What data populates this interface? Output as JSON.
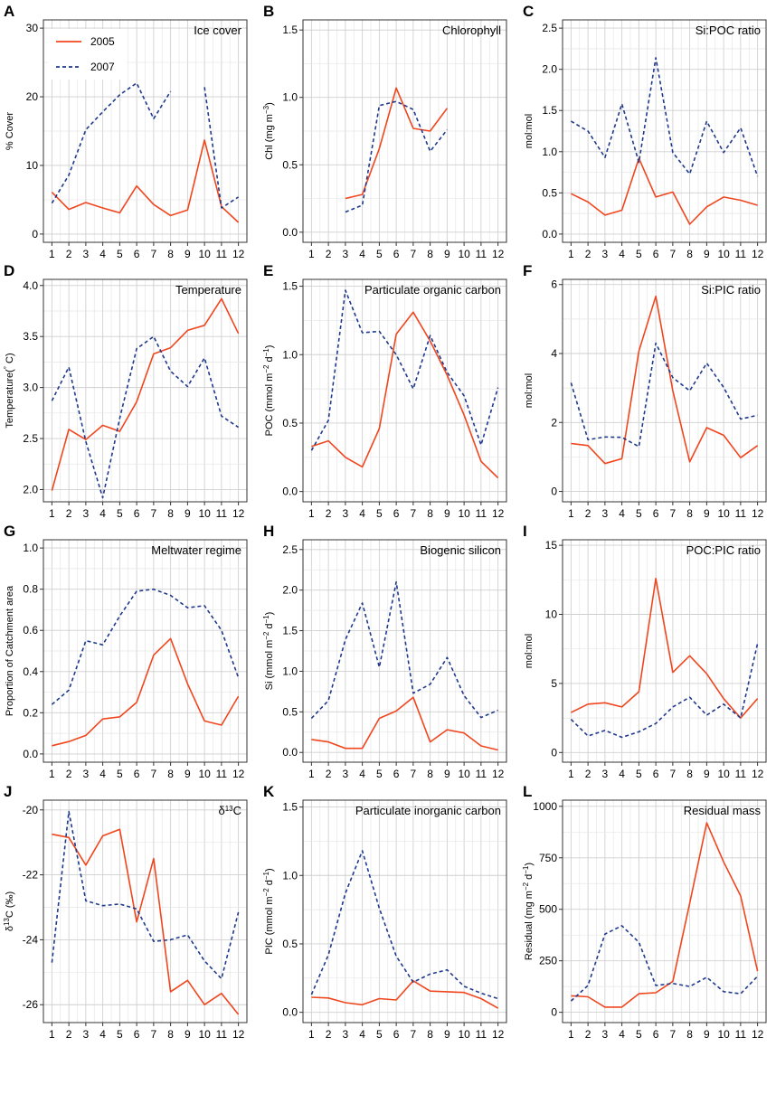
{
  "colors": {
    "s2005": "#f0461e",
    "s2007": "#1f3a8c",
    "grid": "#cfcfcf",
    "frame": "#333333"
  },
  "legend": {
    "entries": [
      "2005",
      "2007"
    ]
  },
  "chart_data": [
    {
      "id": "A",
      "title": "Ice cover",
      "type": "line",
      "ylabel": "% Cover",
      "ylabel_parts": [],
      "ylim": [
        -1.2,
        31.2
      ],
      "yticks": [
        0,
        10,
        20,
        30
      ],
      "ytick_labels": [
        "0",
        "10",
        "20",
        "30"
      ],
      "categories": [
        "1",
        "2",
        "3",
        "4",
        "5",
        "6",
        "7",
        "8",
        "9",
        "10",
        "11",
        "12"
      ],
      "series": [
        {
          "name": "2005",
          "values": [
            6.1,
            3.6,
            4.6,
            3.8,
            3.1,
            7.0,
            4.3,
            2.7,
            3.5,
            13.7,
            4.0,
            1.7
          ]
        },
        {
          "name": "2007",
          "values": [
            4.5,
            8.6,
            15.2,
            17.8,
            20.3,
            22.0,
            16.8,
            20.8,
            null,
            21.4,
            3.8,
            5.4
          ]
        }
      ]
    },
    {
      "id": "B",
      "title": "Chlorophyll",
      "type": "line",
      "ylabel": "",
      "ylabel_parts": [
        [
          "Chl (mg m",
          ""
        ],
        [
          "−3",
          "sup"
        ],
        [
          ")",
          ""
        ]
      ],
      "ylim": [
        -0.075,
        1.575
      ],
      "yticks": [
        0,
        0.5,
        1.0,
        1.5
      ],
      "ytick_labels": [
        "0.0",
        "0.5",
        "1.0",
        "1.5"
      ],
      "categories": [
        "1",
        "2",
        "3",
        "4",
        "5",
        "6",
        "7",
        "8",
        "9",
        "10",
        "11",
        "12"
      ],
      "series": [
        {
          "name": "2005",
          "values": [
            null,
            null,
            0.25,
            0.28,
            0.62,
            1.07,
            0.77,
            0.75,
            0.92,
            null,
            null,
            null
          ]
        },
        {
          "name": "2007",
          "values": [
            null,
            null,
            0.15,
            0.2,
            0.94,
            0.97,
            0.91,
            0.6,
            0.76,
            null,
            null,
            null
          ]
        }
      ]
    },
    {
      "id": "C",
      "title": "Si:POC ratio",
      "type": "line",
      "ylabel": "mol:mol",
      "ylabel_parts": [],
      "ylim": [
        -0.1,
        2.6
      ],
      "yticks": [
        0,
        0.5,
        1.0,
        1.5,
        2.0,
        2.5
      ],
      "ytick_labels": [
        "0.0",
        "0.5",
        "1.0",
        "1.5",
        "2.0",
        "2.5"
      ],
      "categories": [
        "1",
        "2",
        "3",
        "4",
        "5",
        "6",
        "7",
        "8",
        "9",
        "10",
        "11",
        "12"
      ],
      "series": [
        {
          "name": "2005",
          "values": [
            0.49,
            0.39,
            0.23,
            0.29,
            0.92,
            0.45,
            0.51,
            0.12,
            0.33,
            0.45,
            0.41,
            0.35
          ]
        },
        {
          "name": "2007",
          "values": [
            1.37,
            1.25,
            0.93,
            1.58,
            0.87,
            2.14,
            0.99,
            0.73,
            1.37,
            0.99,
            1.29,
            0.7
          ]
        }
      ]
    },
    {
      "id": "D",
      "title": "Temperature",
      "type": "line",
      "ylabel": "",
      "ylabel_parts": [
        [
          "Temperature(",
          ""
        ],
        [
          "°",
          "sup"
        ],
        [
          " C)",
          ""
        ]
      ],
      "ylim": [
        1.88,
        4.06
      ],
      "yticks": [
        2.0,
        2.5,
        3.0,
        3.5,
        4.0
      ],
      "ytick_labels": [
        "2.0",
        "2.5",
        "3.0",
        "3.5",
        "4.0"
      ],
      "categories": [
        "1",
        "2",
        "3",
        "4",
        "5",
        "6",
        "7",
        "8",
        "9",
        "10",
        "11",
        "12"
      ],
      "series": [
        {
          "name": "2005",
          "values": [
            1.99,
            2.59,
            2.49,
            2.63,
            2.57,
            2.86,
            3.33,
            3.39,
            3.56,
            3.61,
            3.87,
            3.53
          ]
        },
        {
          "name": "2007",
          "values": [
            2.87,
            3.2,
            2.47,
            1.92,
            2.7,
            3.38,
            3.5,
            3.16,
            3.01,
            3.29,
            2.72,
            2.61
          ]
        }
      ]
    },
    {
      "id": "E",
      "title": "Particulate organic carbon",
      "type": "line",
      "ylabel": "",
      "ylabel_parts": [
        [
          "POC (mmol m",
          ""
        ],
        [
          "−2",
          "sup"
        ],
        [
          " d",
          ""
        ],
        [
          "−1",
          "sup"
        ],
        [
          ")",
          ""
        ]
      ],
      "ylim": [
        -0.075,
        1.55
      ],
      "yticks": [
        0,
        0.5,
        1.0,
        1.5
      ],
      "ytick_labels": [
        "0.0",
        "0.5",
        "1.0",
        "1.5"
      ],
      "categories": [
        "1",
        "2",
        "3",
        "4",
        "5",
        "6",
        "7",
        "8",
        "9",
        "10",
        "11",
        "12"
      ],
      "series": [
        {
          "name": "2005",
          "values": [
            0.33,
            0.37,
            0.25,
            0.18,
            0.46,
            1.15,
            1.31,
            1.1,
            0.85,
            0.56,
            0.22,
            0.1
          ]
        },
        {
          "name": "2007",
          "values": [
            0.3,
            0.52,
            1.47,
            1.16,
            1.17,
            1.0,
            0.75,
            1.14,
            0.87,
            0.7,
            0.34,
            0.76
          ]
        }
      ]
    },
    {
      "id": "F",
      "title": "Si:PIC ratio",
      "type": "line",
      "ylabel": "mol:mol",
      "ylabel_parts": [],
      "ylim": [
        -0.3,
        6.15
      ],
      "yticks": [
        0,
        2,
        4,
        6
      ],
      "ytick_labels": [
        "0",
        "2",
        "4",
        "6"
      ],
      "categories": [
        "1",
        "2",
        "3",
        "4",
        "5",
        "6",
        "7",
        "8",
        "9",
        "10",
        "11",
        "12"
      ],
      "series": [
        {
          "name": "2005",
          "values": [
            1.39,
            1.33,
            0.81,
            0.95,
            4.07,
            5.66,
            2.92,
            0.86,
            1.85,
            1.63,
            0.98,
            1.33
          ]
        },
        {
          "name": "2007",
          "values": [
            3.15,
            1.5,
            1.58,
            1.57,
            1.3,
            4.3,
            3.3,
            2.92,
            3.72,
            3.02,
            2.1,
            2.21
          ]
        }
      ]
    },
    {
      "id": "G",
      "title": "Meltwater regime",
      "type": "line",
      "ylabel": "Proportion of Catchment area",
      "ylabel_parts": [],
      "ylim": [
        -0.04,
        1.04
      ],
      "yticks": [
        0,
        0.2,
        0.4,
        0.6,
        0.8,
        1.0
      ],
      "ytick_labels": [
        "0.0",
        "0.2",
        "0.4",
        "0.6",
        "0.8",
        "1.0"
      ],
      "categories": [
        "1",
        "2",
        "3",
        "4",
        "5",
        "6",
        "7",
        "8",
        "9",
        "10",
        "11",
        "12"
      ],
      "series": [
        {
          "name": "2005",
          "values": [
            0.04,
            0.06,
            0.09,
            0.17,
            0.18,
            0.25,
            0.48,
            0.56,
            0.34,
            0.16,
            0.14,
            0.28
          ]
        },
        {
          "name": "2007",
          "values": [
            0.24,
            0.31,
            0.55,
            0.53,
            0.67,
            0.79,
            0.8,
            0.77,
            0.71,
            0.72,
            0.6,
            0.37
          ]
        }
      ]
    },
    {
      "id": "H",
      "title": "Biogenic silicon",
      "type": "line",
      "ylabel": "",
      "ylabel_parts": [
        [
          "Si (mmol m",
          ""
        ],
        [
          "−2",
          "sup"
        ],
        [
          " d",
          ""
        ],
        [
          "−1",
          "sup"
        ],
        [
          ")",
          ""
        ]
      ],
      "ylim": [
        -0.12,
        2.62
      ],
      "yticks": [
        0,
        0.5,
        1.0,
        1.5,
        2.0,
        2.5
      ],
      "ytick_labels": [
        "0.0",
        "0.5",
        "1.0",
        "1.5",
        "2.0",
        "2.5"
      ],
      "categories": [
        "1",
        "2",
        "3",
        "4",
        "5",
        "6",
        "7",
        "8",
        "9",
        "10",
        "11",
        "12"
      ],
      "series": [
        {
          "name": "2005",
          "values": [
            0.16,
            0.13,
            0.05,
            0.05,
            0.42,
            0.51,
            0.68,
            0.13,
            0.28,
            0.24,
            0.08,
            0.03
          ]
        },
        {
          "name": "2007",
          "values": [
            0.42,
            0.64,
            1.39,
            1.84,
            1.05,
            2.1,
            0.73,
            0.84,
            1.17,
            0.7,
            0.43,
            0.52
          ]
        }
      ]
    },
    {
      "id": "I",
      "title": "POC:PIC ratio",
      "type": "line",
      "ylabel": "mol:mol",
      "ylabel_parts": [],
      "ylim": [
        -0.7,
        15.4
      ],
      "yticks": [
        0,
        5,
        10,
        15
      ],
      "ytick_labels": [
        "0",
        "5",
        "10",
        "15"
      ],
      "categories": [
        "1",
        "2",
        "3",
        "4",
        "5",
        "6",
        "7",
        "8",
        "9",
        "10",
        "11",
        "12"
      ],
      "series": [
        {
          "name": "2005",
          "values": [
            2.9,
            3.5,
            3.6,
            3.3,
            4.4,
            12.6,
            5.8,
            7.0,
            5.7,
            3.9,
            2.5,
            3.9
          ]
        },
        {
          "name": "2007",
          "values": [
            2.4,
            1.2,
            1.6,
            1.1,
            1.5,
            2.1,
            3.3,
            4.0,
            2.7,
            3.5,
            2.5,
            7.9
          ]
        }
      ]
    },
    {
      "id": "J",
      "title": "δ13C",
      "title_parts": [
        [
          "δ",
          ""
        ],
        [
          "13",
          "sup"
        ],
        [
          "C",
          ""
        ]
      ],
      "type": "line",
      "ylabel": "",
      "ylabel_parts": [
        [
          "δ",
          ""
        ],
        [
          "13",
          "sup"
        ],
        [
          "C (‰)",
          ""
        ]
      ],
      "ylim": [
        -26.55,
        -19.7
      ],
      "yticks": [
        -26,
        -24,
        -22,
        -20
      ],
      "ytick_labels": [
        "-26",
        "-24",
        "-22",
        "-20"
      ],
      "categories": [
        "1",
        "2",
        "3",
        "4",
        "5",
        "6",
        "7",
        "8",
        "9",
        "10",
        "11",
        "12"
      ],
      "series": [
        {
          "name": "2005",
          "values": [
            -20.75,
            -20.85,
            -21.7,
            -20.8,
            -20.6,
            -23.45,
            -21.5,
            -25.6,
            -25.25,
            -26.0,
            -25.65,
            -26.3
          ]
        },
        {
          "name": "2007",
          "values": [
            -24.7,
            -20.05,
            -22.8,
            -22.95,
            -22.9,
            -23.05,
            -24.05,
            -24.0,
            -23.85,
            -24.65,
            -25.2,
            -23.15
          ]
        }
      ]
    },
    {
      "id": "K",
      "title": "Particulate inorganic carbon",
      "type": "line",
      "ylabel": "",
      "ylabel_parts": [
        [
          "PIC (mmol m",
          ""
        ],
        [
          "−2",
          "sup"
        ],
        [
          " d",
          ""
        ],
        [
          "−1",
          "sup"
        ],
        [
          ")",
          ""
        ]
      ],
      "ylim": [
        -0.075,
        1.55
      ],
      "yticks": [
        0,
        0.5,
        1.0,
        1.5
      ],
      "ytick_labels": [
        "0.0",
        "0.5",
        "1.0",
        "1.5"
      ],
      "categories": [
        "1",
        "2",
        "3",
        "4",
        "5",
        "6",
        "7",
        "8",
        "9",
        "10",
        "11",
        "12"
      ],
      "series": [
        {
          "name": "2005",
          "values": [
            0.11,
            0.105,
            0.07,
            0.055,
            0.1,
            0.09,
            0.23,
            0.155,
            0.15,
            0.145,
            0.1,
            0.03
          ]
        },
        {
          "name": "2007",
          "values": [
            0.13,
            0.42,
            0.87,
            1.18,
            0.76,
            0.41,
            0.22,
            0.28,
            0.31,
            0.19,
            0.14,
            0.1
          ]
        }
      ]
    },
    {
      "id": "L",
      "title": "Residual mass",
      "type": "line",
      "ylabel": "",
      "ylabel_parts": [
        [
          "Residual (mg m",
          ""
        ],
        [
          "−2",
          "sup"
        ],
        [
          " d",
          ""
        ],
        [
          "−1",
          "sup"
        ],
        [
          ")",
          ""
        ]
      ],
      "ylim": [
        -50,
        1030
      ],
      "yticks": [
        0,
        250,
        500,
        750,
        1000
      ],
      "ytick_labels": [
        "0",
        "250",
        "500",
        "750",
        "1000"
      ],
      "categories": [
        "1",
        "2",
        "3",
        "4",
        "5",
        "6",
        "7",
        "8",
        "9",
        "10",
        "11",
        "12"
      ],
      "series": [
        {
          "name": "2005",
          "values": [
            80,
            75,
            25,
            25,
            90,
            95,
            150,
            530,
            920,
            730,
            565,
            200
          ]
        },
        {
          "name": "2007",
          "values": [
            55,
            130,
            380,
            420,
            340,
            130,
            140,
            125,
            170,
            100,
            90,
            175
          ]
        }
      ]
    }
  ]
}
